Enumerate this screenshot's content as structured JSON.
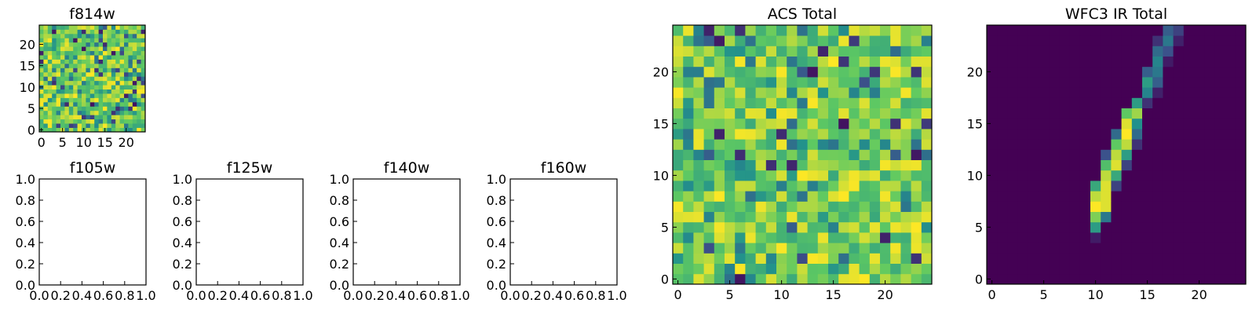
{
  "figure": {
    "colormap": "viridis",
    "panels": [
      {
        "id": "f814w",
        "title": "f814w"
      },
      {
        "id": "f105w",
        "title": "f105w"
      },
      {
        "id": "f125w",
        "title": "f125w"
      },
      {
        "id": "f140w",
        "title": "f140w"
      },
      {
        "id": "f160w",
        "title": "f160w"
      },
      {
        "id": "acs-total",
        "title": "ACS Total"
      },
      {
        "id": "wfc3-ir-total",
        "title": "WFC3 IR Total"
      }
    ]
  },
  "chart_data": [
    {
      "type": "heatmap",
      "title": "f814w",
      "xlabel": "",
      "ylabel": "",
      "xlim": [
        -0.5,
        24.5
      ],
      "ylim": [
        -0.5,
        24.5
      ],
      "xticks": [
        0,
        5,
        10,
        15,
        20
      ],
      "yticks": [
        0,
        5,
        10,
        15,
        20
      ],
      "grid": false,
      "colormap": "viridis",
      "color_min": 0,
      "color_max": 1,
      "pattern": "random noise, mostly high values (green-yellow), scattered low values",
      "grid_size": [
        25,
        25
      ]
    },
    {
      "type": "scatter",
      "title": "f105w",
      "xlim": [
        0.0,
        1.0
      ],
      "ylim": [
        0.0,
        1.0
      ],
      "xticks": [
        "0.0",
        "0.2",
        "0.4",
        "0.6",
        "0.8",
        "1.0"
      ],
      "yticks": [
        "0.0",
        "0.2",
        "0.4",
        "0.6",
        "0.8",
        "1.0"
      ],
      "grid": false,
      "values": []
    },
    {
      "type": "scatter",
      "title": "f125w",
      "xlim": [
        0.0,
        1.0
      ],
      "ylim": [
        0.0,
        1.0
      ],
      "xticks": [
        "0.0",
        "0.2",
        "0.4",
        "0.6",
        "0.8",
        "1.0"
      ],
      "yticks": [
        "0.0",
        "0.2",
        "0.4",
        "0.6",
        "0.8",
        "1.0"
      ],
      "grid": false,
      "values": []
    },
    {
      "type": "scatter",
      "title": "f140w",
      "xlim": [
        0.0,
        1.0
      ],
      "ylim": [
        0.0,
        1.0
      ],
      "xticks": [
        "0.0",
        "0.2",
        "0.4",
        "0.6",
        "0.8",
        "1.0"
      ],
      "yticks": [
        "0.0",
        "0.2",
        "0.4",
        "0.6",
        "0.8",
        "1.0"
      ],
      "grid": false,
      "values": []
    },
    {
      "type": "scatter",
      "title": "f160w",
      "xlim": [
        0.0,
        1.0
      ],
      "ylim": [
        0.0,
        1.0
      ],
      "xticks": [
        "0.0",
        "0.2",
        "0.4",
        "0.6",
        "0.8",
        "1.0"
      ],
      "yticks": [
        "0.0",
        "0.2",
        "0.4",
        "0.6",
        "0.8",
        "1.0"
      ],
      "grid": false,
      "values": []
    },
    {
      "type": "heatmap",
      "title": "ACS Total",
      "xlim": [
        -0.5,
        24.5
      ],
      "ylim": [
        -0.5,
        24.5
      ],
      "xticks": [
        0,
        5,
        10,
        15,
        20
      ],
      "yticks": [
        0,
        5,
        10,
        15,
        20
      ],
      "grid": false,
      "colormap": "viridis",
      "color_min": 0,
      "color_max": 1,
      "pattern": "random noise, mostly high values (green-yellow), scattered low values",
      "grid_size": [
        25,
        25
      ]
    },
    {
      "type": "heatmap",
      "title": "WFC3 IR Total",
      "xlim": [
        -0.5,
        24.5
      ],
      "ylim": [
        -0.5,
        24.5
      ],
      "xticks": [
        0,
        5,
        10,
        15,
        20
      ],
      "yticks": [
        0,
        5,
        10,
        15,
        20
      ],
      "grid": false,
      "colormap": "viridis",
      "color_min": 0,
      "color_max": 1,
      "grid_size": [
        25,
        25
      ],
      "background_value": 0,
      "cells": [
        {
          "x": 10,
          "y": 4,
          "v": 0.08
        },
        {
          "x": 10,
          "y": 5,
          "v": 0.55
        },
        {
          "x": 10,
          "y": 6,
          "v": 0.8
        },
        {
          "x": 10,
          "y": 7,
          "v": 1.0
        },
        {
          "x": 10,
          "y": 8,
          "v": 0.9
        },
        {
          "x": 10,
          "y": 9,
          "v": 0.6
        },
        {
          "x": 11,
          "y": 6,
          "v": 0.4
        },
        {
          "x": 11,
          "y": 7,
          "v": 0.95
        },
        {
          "x": 11,
          "y": 8,
          "v": 0.95
        },
        {
          "x": 11,
          "y": 9,
          "v": 0.95
        },
        {
          "x": 11,
          "y": 10,
          "v": 0.9
        },
        {
          "x": 11,
          "y": 11,
          "v": 0.7
        },
        {
          "x": 11,
          "y": 12,
          "v": 0.25
        },
        {
          "x": 12,
          "y": 9,
          "v": 0.2
        },
        {
          "x": 12,
          "y": 10,
          "v": 0.6
        },
        {
          "x": 12,
          "y": 11,
          "v": 0.95
        },
        {
          "x": 12,
          "y": 12,
          "v": 0.9
        },
        {
          "x": 12,
          "y": 13,
          "v": 0.75
        },
        {
          "x": 12,
          "y": 14,
          "v": 0.35
        },
        {
          "x": 13,
          "y": 11,
          "v": 0.2
        },
        {
          "x": 13,
          "y": 12,
          "v": 0.55
        },
        {
          "x": 13,
          "y": 13,
          "v": 0.9
        },
        {
          "x": 13,
          "y": 14,
          "v": 1.0
        },
        {
          "x": 13,
          "y": 15,
          "v": 0.95
        },
        {
          "x": 13,
          "y": 16,
          "v": 0.75
        },
        {
          "x": 14,
          "y": 13,
          "v": 0.15
        },
        {
          "x": 14,
          "y": 14,
          "v": 0.35
        },
        {
          "x": 14,
          "y": 15,
          "v": 0.5
        },
        {
          "x": 14,
          "y": 16,
          "v": 0.85
        },
        {
          "x": 14,
          "y": 17,
          "v": 0.55
        },
        {
          "x": 15,
          "y": 17,
          "v": 0.15
        },
        {
          "x": 15,
          "y": 18,
          "v": 0.45
        },
        {
          "x": 15,
          "y": 19,
          "v": 0.55
        },
        {
          "x": 15,
          "y": 20,
          "v": 0.3
        },
        {
          "x": 16,
          "y": 18,
          "v": 0.1
        },
        {
          "x": 16,
          "y": 19,
          "v": 0.3
        },
        {
          "x": 16,
          "y": 20,
          "v": 0.4
        },
        {
          "x": 16,
          "y": 21,
          "v": 0.45
        },
        {
          "x": 16,
          "y": 22,
          "v": 0.35
        },
        {
          "x": 16,
          "y": 23,
          "v": 0.15
        },
        {
          "x": 17,
          "y": 21,
          "v": 0.08
        },
        {
          "x": 17,
          "y": 22,
          "v": 0.25
        },
        {
          "x": 17,
          "y": 23,
          "v": 0.4
        },
        {
          "x": 17,
          "y": 24,
          "v": 0.3
        },
        {
          "x": 18,
          "y": 23,
          "v": 0.1
        },
        {
          "x": 18,
          "y": 24,
          "v": 0.2
        }
      ]
    }
  ]
}
